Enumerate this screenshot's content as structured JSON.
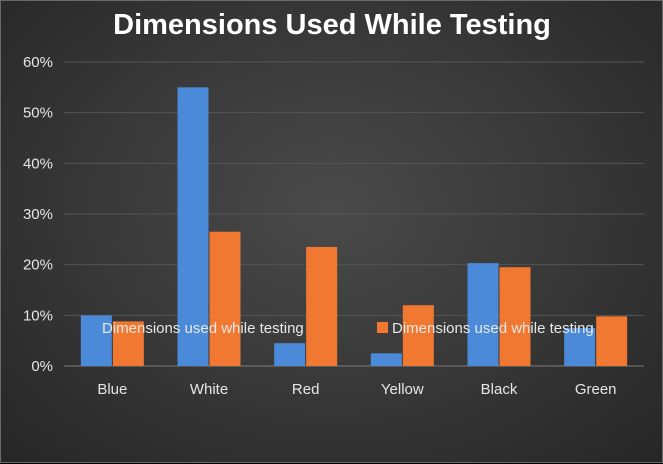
{
  "chart_data": {
    "type": "bar",
    "title": "Dimensions Used While Testing",
    "categories": [
      "Blue",
      "White",
      "Red",
      "Yellow",
      "Black",
      "Green"
    ],
    "series": [
      {
        "name": "Dimensions used while testing",
        "color": "#4a8ad8",
        "values": [
          10,
          55,
          4.5,
          2.5,
          20.3,
          7.5
        ]
      },
      {
        "name": "Dimensions used while testing",
        "color": "#f07830",
        "values": [
          8.8,
          26.5,
          23.5,
          12,
          19.5,
          9.8
        ]
      }
    ],
    "ylim": [
      0,
      60
    ],
    "yticks": [
      0,
      10,
      20,
      30,
      40,
      50,
      60
    ],
    "ytick_labels": [
      "0%",
      "10%",
      "20%",
      "30%",
      "40%",
      "50%",
      "60%"
    ],
    "xlabel": "",
    "ylabel": "",
    "grid": true,
    "legend_position": "inside-bottom"
  }
}
